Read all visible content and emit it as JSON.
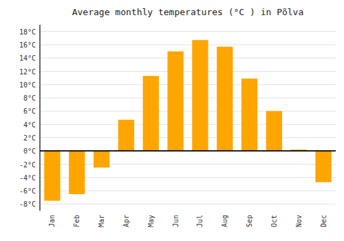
{
  "chart_data": {
    "type": "bar",
    "title": "Average monthly temperatures (°C ) in Põlva",
    "categories": [
      "Jan",
      "Feb",
      "Mar",
      "Apr",
      "May",
      "Jun",
      "Jul",
      "Aug",
      "Sep",
      "Oct",
      "Nov",
      "Dec"
    ],
    "values": [
      -7.5,
      -6.5,
      -2.5,
      4.7,
      11.3,
      15.0,
      16.7,
      15.7,
      10.9,
      6.0,
      0.2,
      -4.7
    ],
    "color": "#FFA500",
    "ylim": [
      -9,
      19
    ],
    "yticks": [
      {
        "value": -8,
        "label": "-8°C"
      },
      {
        "value": -6,
        "label": "-6°C"
      },
      {
        "value": -4,
        "label": "-4°C"
      },
      {
        "value": -2,
        "label": "-2°C"
      },
      {
        "value": 0,
        "label": "0°C"
      },
      {
        "value": 2,
        "label": "2°C"
      },
      {
        "value": 4,
        "label": "4°C"
      },
      {
        "value": 6,
        "label": "6°C"
      },
      {
        "value": 8,
        "label": "8°C"
      },
      {
        "value": 10,
        "label": "10°C"
      },
      {
        "value": 12,
        "label": "12°C"
      },
      {
        "value": 14,
        "label": "14°C"
      },
      {
        "value": 16,
        "label": "16°C"
      },
      {
        "value": 18,
        "label": "18°C"
      }
    ],
    "grid": true
  }
}
